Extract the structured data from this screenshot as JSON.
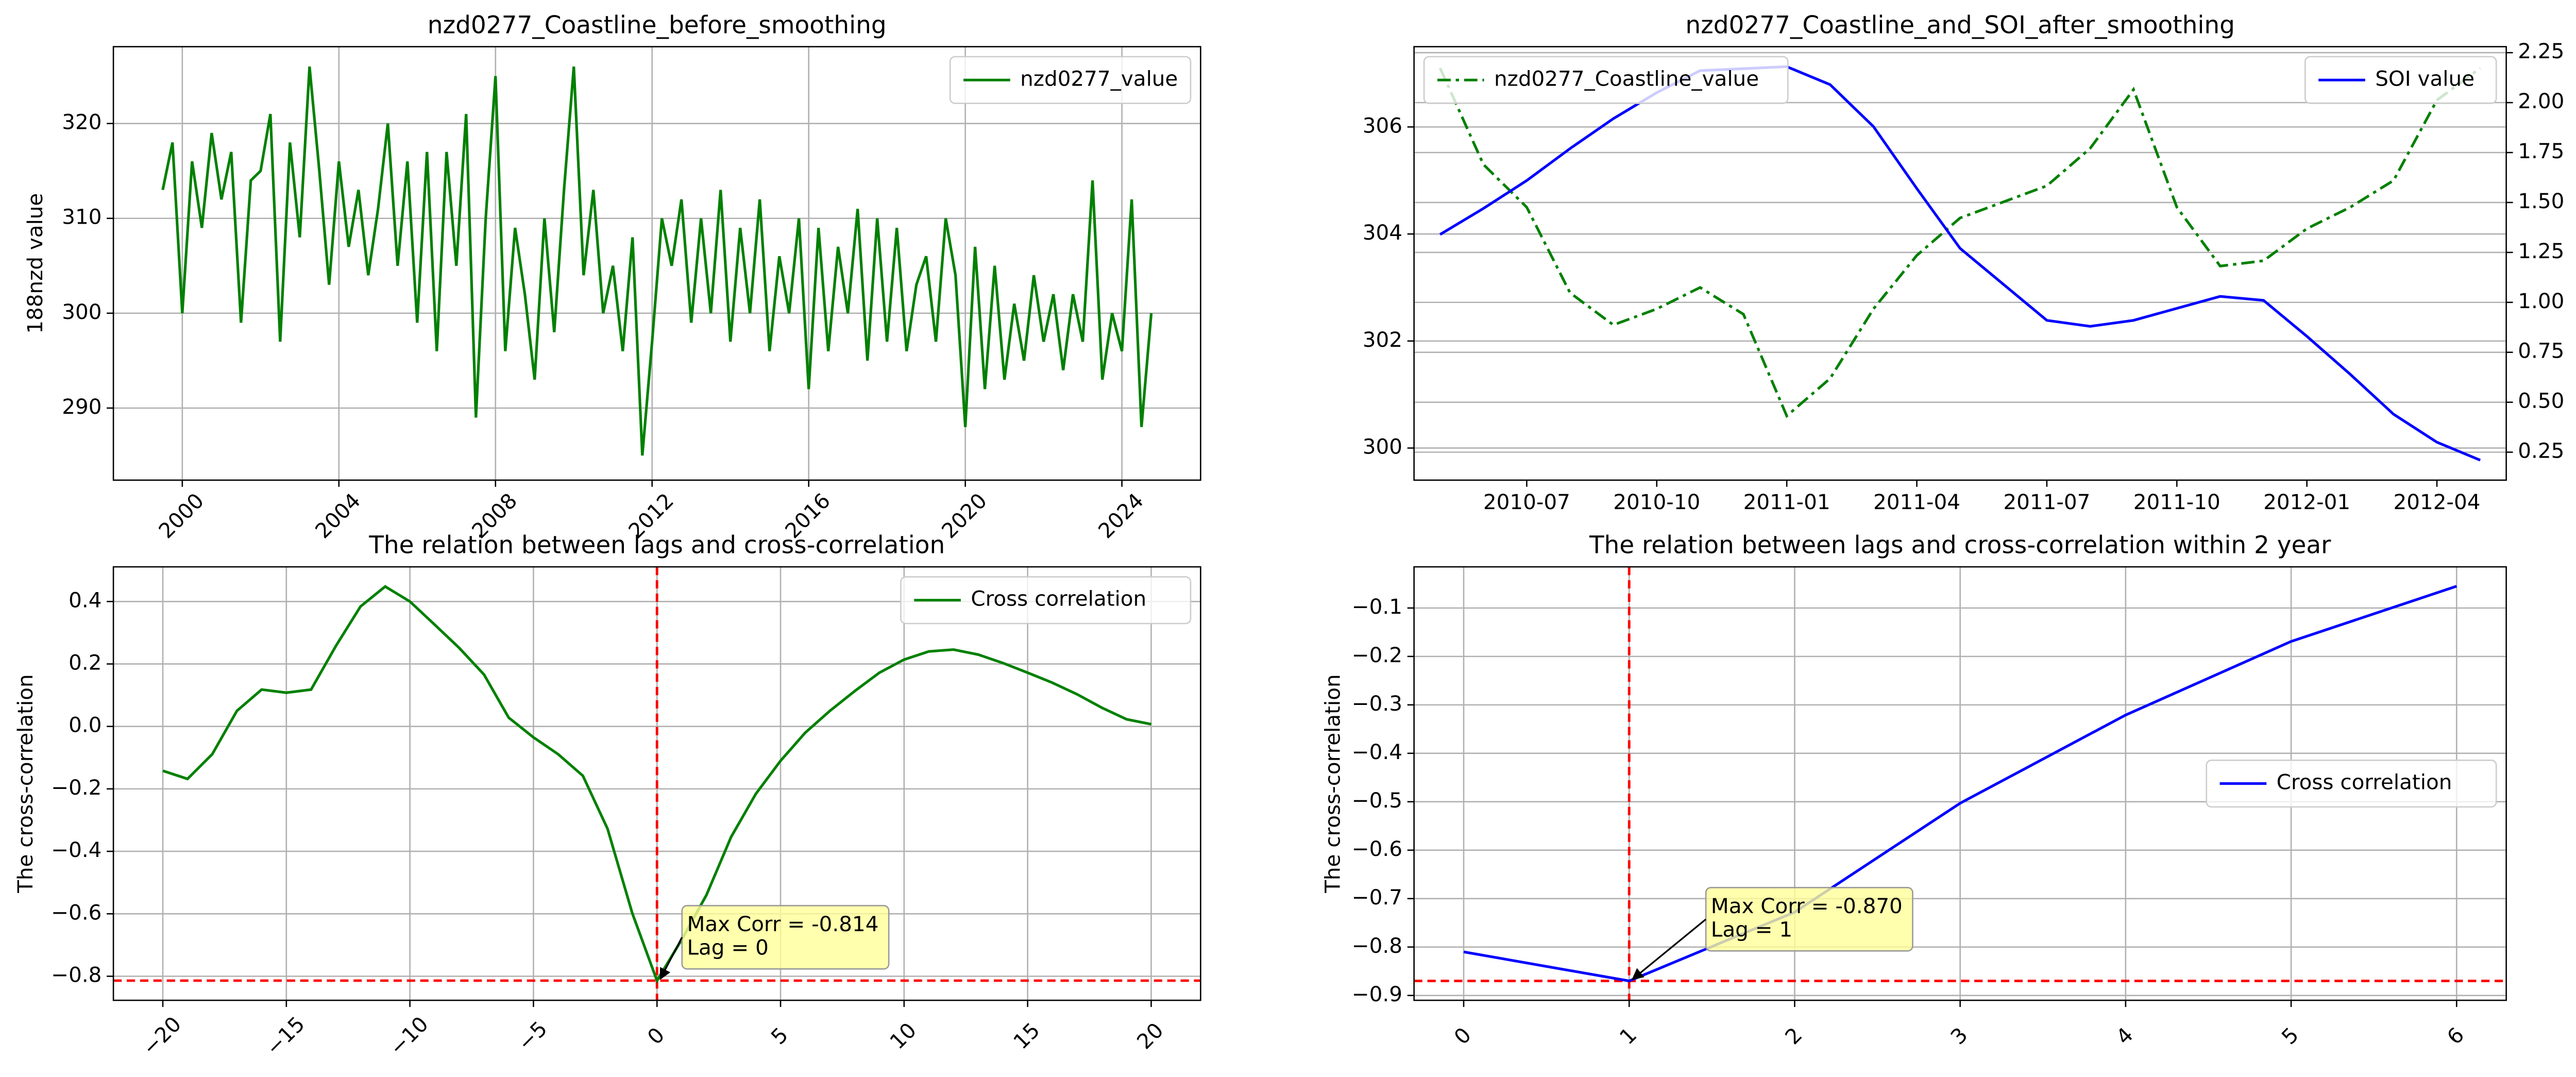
{
  "chart_data": [
    {
      "type": "line",
      "title": "nzd0277_Coastline_before_smoothing",
      "ylabel": "188nzd value",
      "x": [
        1999.5,
        1999.75,
        2000,
        2000.25,
        2000.5,
        2000.75,
        2001,
        2001.25,
        2001.5,
        2001.75,
        2002,
        2002.25,
        2002.5,
        2002.75,
        2003,
        2003.25,
        2003.5,
        2003.75,
        2004,
        2004.25,
        2004.5,
        2004.75,
        2005,
        2005.25,
        2005.5,
        2005.75,
        2006,
        2006.25,
        2006.5,
        2006.75,
        2007,
        2007.25,
        2007.5,
        2007.75,
        2008,
        2008.25,
        2008.5,
        2008.75,
        2009,
        2009.25,
        2009.5,
        2009.75,
        2010,
        2010.25,
        2010.5,
        2010.75,
        2011,
        2011.25,
        2011.5,
        2011.75,
        2012,
        2012.25,
        2012.5,
        2012.75,
        2013,
        2013.25,
        2013.5,
        2013.75,
        2014,
        2014.25,
        2014.5,
        2014.75,
        2015,
        2015.25,
        2015.5,
        2015.75,
        2016,
        2016.25,
        2016.5,
        2016.75,
        2017,
        2017.25,
        2017.5,
        2017.75,
        2018,
        2018.25,
        2018.5,
        2018.75,
        2019,
        2019.25,
        2019.5,
        2019.75,
        2020,
        2020.25,
        2020.5,
        2020.75,
        2021,
        2021.25,
        2021.5,
        2021.75,
        2022,
        2022.25,
        2022.5,
        2022.75,
        2023,
        2023.25,
        2023.5,
        2023.75,
        2024,
        2024.25,
        2024.5,
        2024.75
      ],
      "series": [
        {
          "name": "nzd0277_value",
          "color": "#008000",
          "linestyle": "solid",
          "values": [
            313,
            318,
            300,
            316,
            309,
            319,
            312,
            317,
            299,
            314,
            315,
            321,
            297,
            318,
            308,
            326,
            315,
            303,
            316,
            307,
            313,
            304,
            311,
            320,
            305,
            316,
            299,
            317,
            296,
            317,
            305,
            321,
            289,
            310,
            325,
            296,
            309,
            302,
            293,
            310,
            298,
            313,
            326,
            304,
            313,
            300,
            305,
            296,
            308,
            285,
            297,
            310,
            305,
            312,
            299,
            310,
            300,
            313,
            297,
            309,
            300,
            312,
            296,
            306,
            300,
            310,
            292,
            309,
            296,
            307,
            300,
            311,
            295,
            310,
            297,
            309,
            296,
            303,
            306,
            297,
            310,
            304,
            288,
            307,
            292,
            305,
            293,
            301,
            295,
            304,
            297,
            302,
            294,
            302,
            297,
            314,
            293,
            300,
            296,
            312,
            288,
            300
          ]
        }
      ],
      "xlim": [
        1998.24,
        2026.01
      ],
      "ylim": [
        282.4,
        328.1
      ],
      "xticks": [
        2000,
        2004,
        2008,
        2012,
        2016,
        2020,
        2024
      ],
      "yticks": [
        290,
        300,
        310,
        320
      ],
      "grid": "both",
      "legend": "upper right",
      "xtick_rotation": 45
    },
    {
      "type": "line",
      "title": "nzd0277_Coastline_and_SOI_after_smoothing",
      "y2label": "SOI value",
      "x": [
        "2010-05",
        "2010-06",
        "2010-07",
        "2010-08",
        "2010-09",
        "2010-10",
        "2010-11",
        "2010-12",
        "2011-01",
        "2011-02",
        "2011-03",
        "2011-04",
        "2011-05",
        "2011-06",
        "2011-07",
        "2011-08",
        "2011-09",
        "2011-10",
        "2011-11",
        "2011-12",
        "2012-01",
        "2012-02",
        "2012-03",
        "2012-04",
        "2012-05"
      ],
      "series": [
        {
          "name": "nzd0277_Coastline_value",
          "color": "#008000",
          "linestyle": "dashdot",
          "values": [
            307.1,
            305.3,
            304.5,
            302.9,
            302.3,
            302.6,
            303.0,
            302.5,
            300.6,
            301.3,
            302.6,
            303.6,
            304.3,
            304.6,
            304.9,
            305.6,
            306.7,
            304.5,
            303.4,
            303.5,
            304.1,
            304.5,
            305.0,
            306.5,
            307.1
          ]
        },
        {
          "name": "SOI value",
          "color": "#0000ff",
          "linestyle": "solid",
          "axis": "y2",
          "values": [
            1.34,
            1.47,
            1.61,
            1.77,
            1.92,
            2.05,
            2.16,
            2.17,
            2.18,
            2.09,
            1.88,
            1.57,
            1.27,
            1.09,
            0.91,
            0.88,
            0.91,
            0.97,
            1.03,
            1.01,
            0.83,
            0.64,
            0.44,
            0.3,
            0.21
          ]
        }
      ],
      "ylim": [
        299.4,
        307.5
      ],
      "yticks": [
        300,
        302,
        304,
        306
      ],
      "y2lim": [
        0.11,
        2.28
      ],
      "y2ticks": [
        0.25,
        {
          "value": 0.5,
          "label": "0.50"
        },
        0.75,
        {
          "value": 1,
          "label": "1.00"
        },
        1.25,
        {
          "value": 1.5,
          "label": "1.50"
        },
        1.75,
        {
          "value": 2,
          "label": "2.00"
        },
        2.25
      ],
      "xticks": [
        "2010-07",
        "2010-10",
        "2011-01",
        "2011-04",
        "2011-07",
        "2011-10",
        "2012-01",
        "2012-04"
      ],
      "grid": "y",
      "legend": "upper left",
      "legend2": "upper right"
    },
    {
      "type": "line",
      "title": "The relation between lags and cross-correlation",
      "ylabel": "The cross-correlation",
      "x": [
        -20,
        -19,
        -18,
        -17,
        -16,
        -15,
        -14,
        -13,
        -12,
        -11,
        -10,
        -9,
        -8,
        -7,
        -6,
        -5,
        -4,
        -3,
        -2,
        -1,
        0,
        1,
        2,
        3,
        4,
        5,
        6,
        7,
        8,
        9,
        10,
        11,
        12,
        13,
        14,
        15,
        16,
        17,
        18,
        19,
        20
      ],
      "series": [
        {
          "name": "Cross correlation",
          "color": "#008000",
          "linestyle": "solid",
          "values": [
            -0.142,
            -0.168,
            -0.089,
            0.05,
            0.118,
            0.108,
            0.118,
            0.257,
            0.384,
            0.448,
            0.4,
            0.326,
            0.251,
            0.166,
            0.028,
            -0.035,
            -0.089,
            -0.158,
            -0.328,
            -0.598,
            -0.814,
            -0.683,
            -0.54,
            -0.354,
            -0.216,
            -0.11,
            -0.02,
            0.05,
            0.113,
            0.172,
            0.214,
            0.24,
            0.246,
            0.23,
            0.203,
            0.172,
            0.14,
            0.103,
            0.06,
            0.023,
            0.007
          ]
        }
      ],
      "xlim": [
        -22,
        22
      ],
      "ylim": [
        -0.877,
        0.511
      ],
      "xticks": [
        {
          "value": -20,
          "label": "−20"
        },
        {
          "value": -15,
          "label": "−15"
        },
        {
          "value": -10,
          "label": "−10"
        },
        {
          "value": -5,
          "label": "−5"
        },
        0,
        5,
        10,
        15,
        20
      ],
      "yticks": [
        {
          "value": -0.8,
          "label": "−0.8"
        },
        {
          "value": -0.6,
          "label": "−0.6"
        },
        {
          "value": -0.4,
          "label": "−0.4"
        },
        {
          "value": -0.2,
          "label": "−0.2"
        },
        {
          "value": 0,
          "label": "0.0"
        },
        0.2,
        0.4
      ],
      "grid": "both",
      "legend": "upper right",
      "xtick_rotation": 45,
      "hline": -0.814,
      "vline": 0,
      "ref_color": "#ff0000",
      "annotation": [
        "Max Corr = -0.814",
        "Lag = 0"
      ]
    },
    {
      "type": "line",
      "title": "The relation between lags and cross-correlation within 2 year",
      "ylabel": "The cross-correlation",
      "x": [
        0,
        1,
        2,
        3,
        4,
        5,
        6
      ],
      "series": [
        {
          "name": "Cross correlation",
          "color": "#0000ff",
          "linestyle": "solid",
          "values": [
            -0.81,
            -0.87,
            -0.728,
            -0.503,
            -0.321,
            -0.169,
            -0.055
          ]
        }
      ],
      "xlim": [
        -0.3,
        6.3
      ],
      "ylim": [
        -0.91,
        -0.015
      ],
      "xticks": [
        0,
        1,
        2,
        3,
        4,
        5,
        6
      ],
      "yticks": [
        {
          "value": -0.9,
          "label": "−0.9"
        },
        {
          "value": -0.8,
          "label": "−0.8"
        },
        {
          "value": -0.7,
          "label": "−0.7"
        },
        {
          "value": -0.6,
          "label": "−0.6"
        },
        {
          "value": -0.5,
          "label": "−0.5"
        },
        {
          "value": -0.4,
          "label": "−0.4"
        },
        {
          "value": -0.3,
          "label": "−0.3"
        },
        {
          "value": -0.2,
          "label": "−0.2"
        },
        {
          "value": -0.1,
          "label": "−0.1"
        }
      ],
      "grid": "both",
      "legend": "center right",
      "xtick_rotation": 45,
      "hline": -0.87,
      "vline": 1,
      "ref_color": "#ff0000",
      "annotation": [
        "Max Corr = -0.870",
        "Lag = 1"
      ]
    }
  ]
}
